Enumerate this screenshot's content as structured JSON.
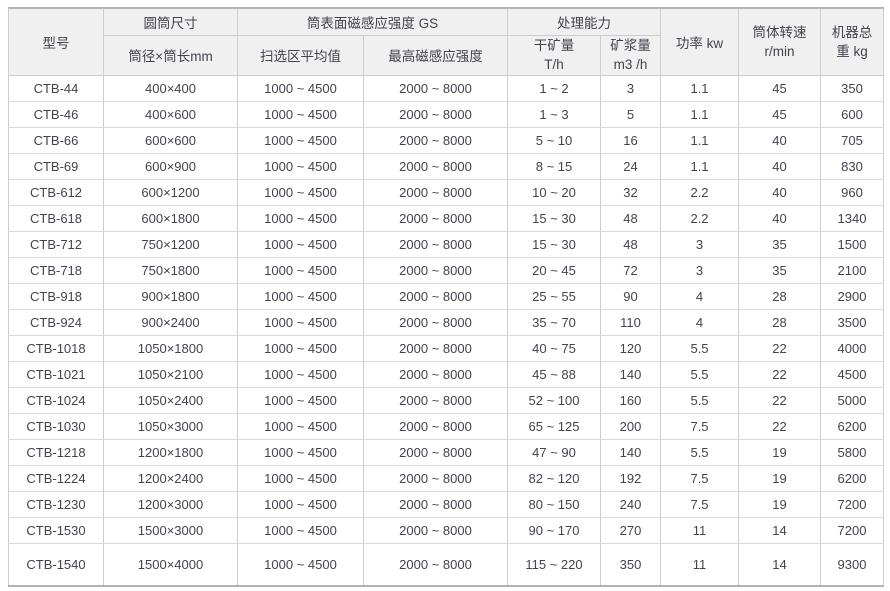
{
  "table": {
    "header": {
      "model": "型号",
      "drum_size_group": "圆筒尺寸",
      "drum_dims": "筒径×筒长mm",
      "magnetic_group": "筒表面磁感应强度 GS",
      "sweep_avg": "扫选区平均值",
      "max_induction": "最高磁感应强度",
      "capacity_group": "处理能力",
      "dry_ore": "干矿量\nT/h",
      "slurry": "矿浆量\nm3 /h",
      "power": "功率 kw",
      "speed": "筒体转速\nr/min",
      "weight": "机器总\n重 kg"
    }
  },
  "colors": {
    "header_bg": "#f0f0f0",
    "cell_bg": "#ffffff",
    "inner_border": "#cccccc",
    "row_border": "#d9d9d9",
    "outer_border": "#b5b5b5",
    "text": "#42434d"
  },
  "chart_data": {
    "type": "table",
    "column_groups": [
      {
        "label": "型号",
        "span": 1
      },
      {
        "label": "圆筒尺寸",
        "span": 1
      },
      {
        "label": "筒表面磁感应强度 GS",
        "span": 2
      },
      {
        "label": "处理能力",
        "span": 2
      },
      {
        "label": "功率 kw",
        "span": 1
      },
      {
        "label": "筒体转速 r/min",
        "span": 1
      },
      {
        "label": "机器总重 kg",
        "span": 1
      }
    ],
    "columns": [
      "型号",
      "筒径×筒长mm",
      "扫选区平均值",
      "最高磁感应强度",
      "干矿量 T/h",
      "矿浆量 m3 /h",
      "功率 kw",
      "筒体转速 r/min",
      "机器总重 kg"
    ],
    "rows": [
      [
        "CTB-44",
        "400×400",
        "1000 ~ 4500",
        "2000 ~ 8000",
        "1 ~ 2",
        "3",
        "1.1",
        "45",
        "350"
      ],
      [
        "CTB-46",
        "400×600",
        "1000 ~ 4500",
        "2000 ~ 8000",
        "1 ~ 3",
        "5",
        "1.1",
        "45",
        "600"
      ],
      [
        "CTB-66",
        "600×600",
        "1000 ~ 4500",
        "2000 ~ 8000",
        "5 ~ 10",
        "16",
        "1.1",
        "40",
        "705"
      ],
      [
        "CTB-69",
        "600×900",
        "1000 ~ 4500",
        "2000 ~ 8000",
        "8 ~ 15",
        "24",
        "1.1",
        "40",
        "830"
      ],
      [
        "CTB-612",
        "600×1200",
        "1000 ~ 4500",
        "2000 ~ 8000",
        "10 ~ 20",
        "32",
        "2.2",
        "40",
        "960"
      ],
      [
        "CTB-618",
        "600×1800",
        "1000 ~ 4500",
        "2000 ~ 8000",
        "15 ~ 30",
        "48",
        "2.2",
        "40",
        "1340"
      ],
      [
        "CTB-712",
        "750×1200",
        "1000 ~ 4500",
        "2000 ~ 8000",
        "15 ~ 30",
        "48",
        "3",
        "35",
        "1500"
      ],
      [
        "CTB-718",
        "750×1800",
        "1000 ~ 4500",
        "2000 ~ 8000",
        "20 ~ 45",
        "72",
        "3",
        "35",
        "2100"
      ],
      [
        "CTB-918",
        "900×1800",
        "1000 ~ 4500",
        "2000 ~ 8000",
        "25 ~ 55",
        "90",
        "4",
        "28",
        "2900"
      ],
      [
        "CTB-924",
        "900×2400",
        "1000 ~ 4500",
        "2000 ~ 8000",
        "35 ~ 70",
        "110",
        "4",
        "28",
        "3500"
      ],
      [
        "CTB-1018",
        "1050×1800",
        "1000 ~ 4500",
        "2000 ~ 8000",
        "40 ~ 75",
        "120",
        "5.5",
        "22",
        "4000"
      ],
      [
        "CTB-1021",
        "1050×2100",
        "1000 ~ 4500",
        "2000 ~ 8000",
        "45 ~ 88",
        "140",
        "5.5",
        "22",
        "4500"
      ],
      [
        "CTB-1024",
        "1050×2400",
        "1000 ~ 4500",
        "2000 ~ 8000",
        "52 ~ 100",
        "160",
        "5.5",
        "22",
        "5000"
      ],
      [
        "CTB-1030",
        "1050×3000",
        "1000 ~ 4500",
        "2000 ~ 8000",
        "65 ~ 125",
        "200",
        "7.5",
        "22",
        "6200"
      ],
      [
        "CTB-1218",
        "1200×1800",
        "1000 ~ 4500",
        "2000 ~ 8000",
        "47 ~ 90",
        "140",
        "5.5",
        "19",
        "5800"
      ],
      [
        "CTB-1224",
        "1200×2400",
        "1000 ~ 4500",
        "2000 ~ 8000",
        "82 ~ 120",
        "192",
        "7.5",
        "19",
        "6200"
      ],
      [
        "CTB-1230",
        "1200×3000",
        "1000 ~ 4500",
        "2000 ~ 8000",
        "80 ~ 150",
        "240",
        "7.5",
        "19",
        "7200"
      ],
      [
        "CTB-1530",
        "1500×3000",
        "1000 ~ 4500",
        "2000 ~ 8000",
        "90 ~ 170",
        "270",
        "11",
        "14",
        "7200"
      ],
      [
        "CTB-1540",
        "1500×4000",
        "1000 ~ 4500",
        "2000 ~ 8000",
        "115 ~ 220",
        "350",
        "11",
        "14",
        "9300"
      ]
    ]
  }
}
